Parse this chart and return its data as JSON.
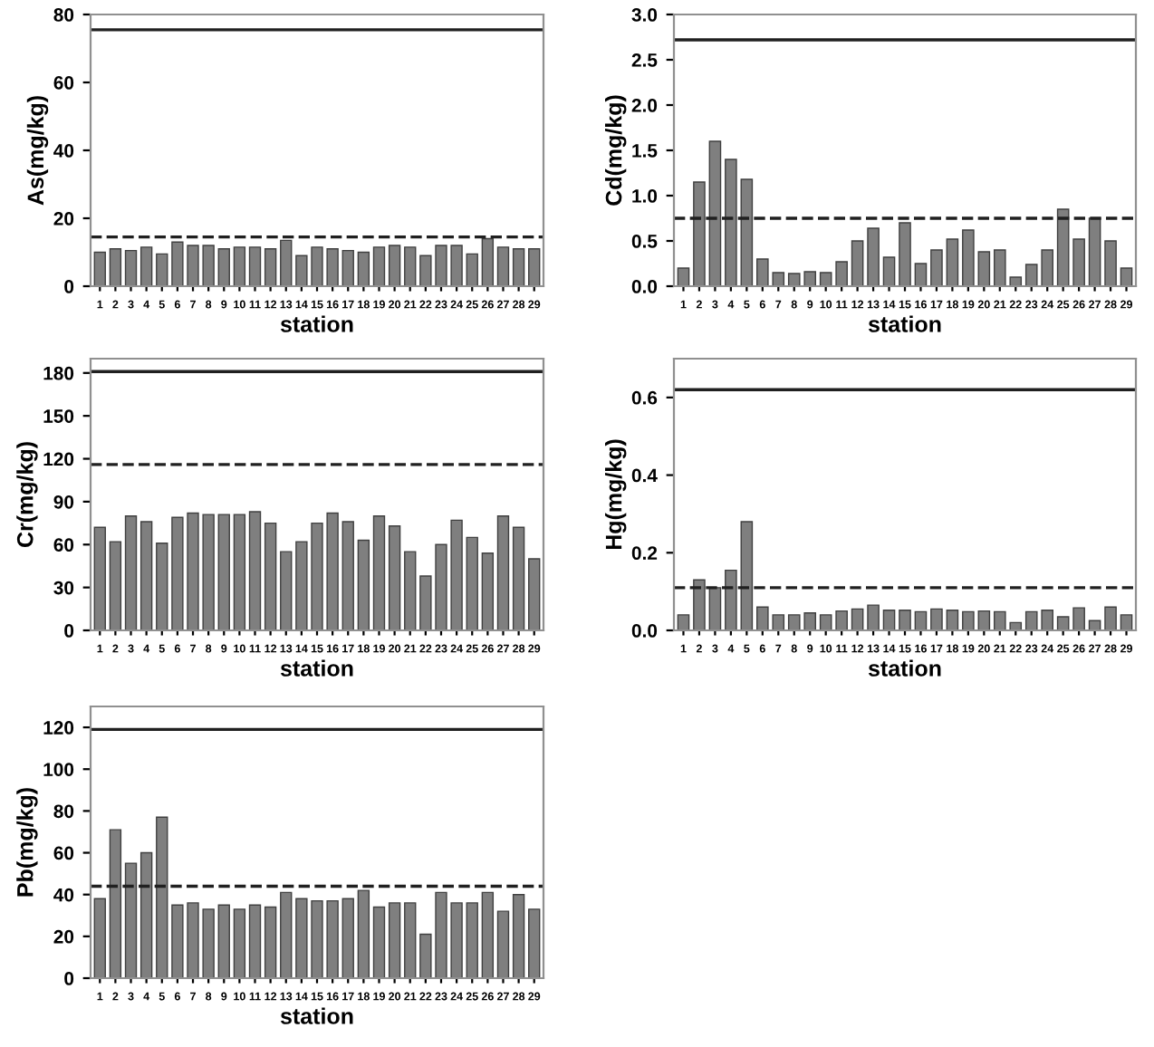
{
  "chart_data": [
    {
      "type": "bar",
      "xlabel": "station",
      "ylabel": "As(mg/kg)",
      "categories": [
        "1",
        "2",
        "3",
        "4",
        "5",
        "6",
        "7",
        "8",
        "9",
        "10",
        "11",
        "12",
        "13",
        "14",
        "15",
        "16",
        "17",
        "18",
        "19",
        "20",
        "21",
        "22",
        "23",
        "24",
        "25",
        "26",
        "27",
        "28",
        "29"
      ],
      "color": "#7f7f7f",
      "values": [
        10,
        11,
        10.5,
        11.5,
        9.5,
        13,
        12,
        12,
        11,
        11.5,
        11.5,
        11,
        13.5,
        9,
        11.5,
        11,
        10.5,
        10,
        11.5,
        12,
        11.5,
        9,
        12,
        12,
        9.5,
        14,
        11.5,
        11,
        11
      ],
      "ylim": [
        0,
        80
      ],
      "yticks": [
        0,
        20,
        40,
        60,
        80
      ],
      "ref_lines": [
        {
          "axis": "y",
          "value": 75.5,
          "line_style": "solid"
        },
        {
          "axis": "y",
          "value": 14.5,
          "line_style": "dashed"
        }
      ],
      "grid": false,
      "legend": false
    },
    {
      "type": "bar",
      "xlabel": "station",
      "ylabel": "Cd(mg/kg)",
      "categories": [
        "1",
        "2",
        "3",
        "4",
        "5",
        "6",
        "7",
        "8",
        "9",
        "10",
        "11",
        "12",
        "13",
        "14",
        "15",
        "16",
        "17",
        "18",
        "19",
        "20",
        "21",
        "22",
        "23",
        "24",
        "25",
        "26",
        "27",
        "28",
        "29"
      ],
      "color": "#7f7f7f",
      "values": [
        0.2,
        1.15,
        1.6,
        1.4,
        1.18,
        0.3,
        0.15,
        0.14,
        0.16,
        0.15,
        0.27,
        0.5,
        0.64,
        0.32,
        0.7,
        0.25,
        0.4,
        0.52,
        0.62,
        0.38,
        0.4,
        0.1,
        0.24,
        0.4,
        0.85,
        0.52,
        0.75,
        0.5,
        0.2
      ],
      "ylim": [
        0,
        3
      ],
      "yticks": [
        {
          "value": 0,
          "label": "0.0"
        },
        {
          "value": 0.5,
          "label": "0.5"
        },
        {
          "value": 1,
          "label": "1.0"
        },
        {
          "value": 1.5,
          "label": "1.5"
        },
        {
          "value": 2,
          "label": "2.0"
        },
        {
          "value": 2.5,
          "label": "2.5"
        },
        {
          "value": 3,
          "label": "3.0"
        }
      ],
      "ref_lines": [
        {
          "axis": "y",
          "value": 2.72,
          "line_style": "solid"
        },
        {
          "axis": "y",
          "value": 0.75,
          "line_style": "dashed"
        }
      ],
      "grid": false,
      "legend": false
    },
    {
      "type": "bar",
      "xlabel": "station",
      "ylabel": "Cr(mg/kg)",
      "categories": [
        "1",
        "2",
        "3",
        "4",
        "5",
        "6",
        "7",
        "8",
        "9",
        "10",
        "11",
        "12",
        "13",
        "14",
        "15",
        "16",
        "17",
        "18",
        "19",
        "20",
        "21",
        "22",
        "23",
        "24",
        "25",
        "26",
        "27",
        "28",
        "29"
      ],
      "color": "#7f7f7f",
      "values": [
        72,
        62,
        80,
        76,
        61,
        79,
        82,
        81,
        81,
        81,
        83,
        75,
        55,
        62,
        75,
        82,
        76,
        63,
        80,
        73,
        55,
        38,
        60,
        77,
        65,
        54,
        80,
        72,
        50
      ],
      "ylim": [
        0,
        190
      ],
      "yticks": [
        0,
        30,
        60,
        90,
        120,
        150,
        180
      ],
      "ref_lines": [
        {
          "axis": "y",
          "value": 181,
          "line_style": "solid"
        },
        {
          "axis": "y",
          "value": 116,
          "line_style": "dashed"
        }
      ],
      "grid": false,
      "legend": false
    },
    {
      "type": "bar",
      "xlabel": "station",
      "ylabel": "Hg(mg/kg)",
      "categories": [
        "1",
        "2",
        "3",
        "4",
        "5",
        "6",
        "7",
        "8",
        "9",
        "10",
        "11",
        "12",
        "13",
        "14",
        "15",
        "16",
        "17",
        "18",
        "19",
        "20",
        "21",
        "22",
        "23",
        "24",
        "25",
        "26",
        "27",
        "28",
        "29"
      ],
      "color": "#7f7f7f",
      "values": [
        0.04,
        0.13,
        0.11,
        0.155,
        0.28,
        0.06,
        0.04,
        0.04,
        0.045,
        0.04,
        0.05,
        0.055,
        0.065,
        0.052,
        0.052,
        0.048,
        0.055,
        0.052,
        0.048,
        0.05,
        0.048,
        0.02,
        0.048,
        0.052,
        0.035,
        0.058,
        0.025,
        0.06,
        0.04
      ],
      "ylim": [
        0,
        0.7
      ],
      "yticks": [
        {
          "value": 0,
          "label": "0.0"
        },
        {
          "value": 0.2,
          "label": "0.2"
        },
        {
          "value": 0.4,
          "label": "0.4"
        },
        {
          "value": 0.6,
          "label": "0.6"
        }
      ],
      "ref_lines": [
        {
          "axis": "y",
          "value": 0.62,
          "line_style": "solid"
        },
        {
          "axis": "y",
          "value": 0.11,
          "line_style": "dashed"
        }
      ],
      "grid": false,
      "legend": false
    },
    {
      "type": "bar",
      "xlabel": "station",
      "ylabel": "Pb(mg/kg)",
      "categories": [
        "1",
        "2",
        "3",
        "4",
        "5",
        "6",
        "7",
        "8",
        "9",
        "10",
        "11",
        "12",
        "13",
        "14",
        "15",
        "16",
        "17",
        "18",
        "19",
        "20",
        "21",
        "22",
        "23",
        "24",
        "25",
        "26",
        "27",
        "28",
        "29"
      ],
      "color": "#7f7f7f",
      "values": [
        38,
        71,
        55,
        60,
        77,
        35,
        36,
        33,
        35,
        33,
        35,
        34,
        41,
        38,
        37,
        37,
        38,
        42,
        34,
        36,
        36,
        21,
        41,
        36,
        36,
        41,
        32,
        40,
        33
      ],
      "ylim": [
        0,
        130
      ],
      "yticks": [
        0,
        20,
        40,
        60,
        80,
        100,
        120
      ],
      "ref_lines": [
        {
          "axis": "y",
          "value": 119,
          "line_style": "solid"
        },
        {
          "axis": "y",
          "value": 44,
          "line_style": "dashed"
        }
      ],
      "grid": false,
      "legend": false
    }
  ]
}
